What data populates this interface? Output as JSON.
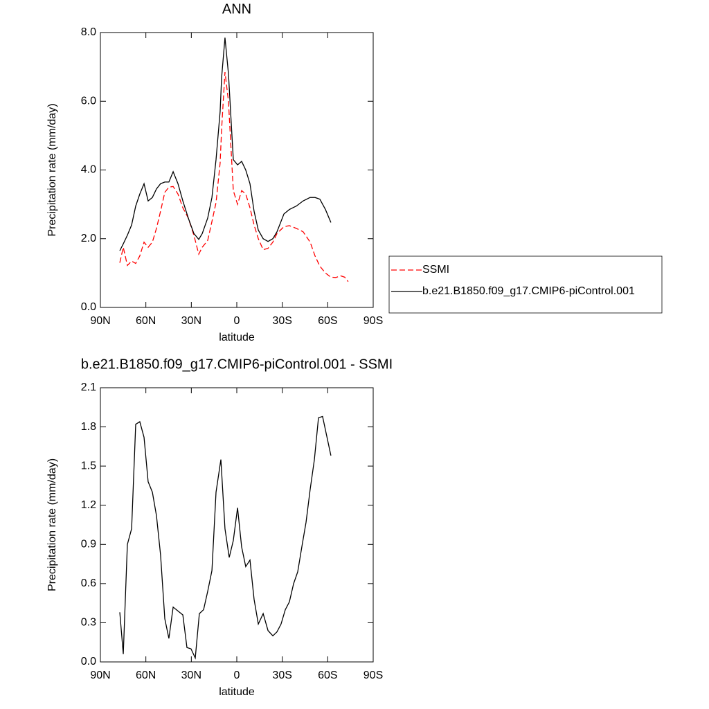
{
  "chart_data": [
    {
      "type": "line",
      "title": "ANN",
      "x_label": "latitude",
      "y_label": "Precipitation rate (mm/day)",
      "x": [
        77.2,
        74.9,
        72.2,
        69.4,
        66.7,
        64.0,
        61.2,
        58.5,
        55.7,
        53.0,
        50.3,
        47.5,
        44.8,
        42.0,
        38.8,
        35.6,
        32.0,
        28.3,
        25.1,
        22.8,
        19.2,
        16.4,
        13.7,
        11.0,
        10.0,
        7.8,
        5.5,
        2.3,
        -0.5,
        -3.2,
        -5.9,
        -8.7,
        -11.4,
        -14.2,
        -17.4,
        -20.6,
        -23.8,
        -26.5,
        -31.1,
        -34.7,
        -39.3,
        -43.8,
        -48.4,
        -51.6,
        -54.8,
        -58.5,
        -62.1,
        -65.3,
        -68.5,
        -71.2,
        -73.5
      ],
      "series": [
        {
          "name": "SSMI",
          "color": "#ff0000",
          "dash": true,
          "values": [
            1.3,
            1.75,
            1.22,
            1.35,
            1.28,
            1.5,
            1.9,
            1.75,
            1.9,
            2.3,
            2.8,
            3.35,
            3.5,
            3.52,
            3.3,
            2.9,
            2.6,
            2.1,
            1.55,
            1.75,
            1.95,
            2.5,
            3.05,
            4.2,
            5.2,
            6.85,
            6.0,
            3.4,
            3.0,
            3.4,
            3.3,
            2.9,
            2.4,
            2.0,
            1.68,
            1.72,
            1.9,
            2.15,
            2.35,
            2.38,
            2.3,
            2.2,
            1.9,
            1.5,
            1.2,
            1.0,
            0.88,
            0.87,
            0.92,
            0.88,
            0.75
          ]
        },
        {
          "name": "b.e21.B1850.f09_g17.CMIP6-piControl.001",
          "color": "#000000",
          "dash": false,
          "values": [
            1.65,
            1.85,
            2.1,
            2.4,
            2.95,
            3.3,
            3.6,
            3.1,
            3.2,
            3.45,
            3.6,
            3.65,
            3.65,
            3.95,
            3.6,
            3.1,
            2.6,
            2.15,
            1.98,
            2.15,
            2.6,
            3.2,
            4.3,
            5.7,
            6.7,
            7.85,
            6.8,
            4.3,
            4.15,
            4.25,
            4.0,
            3.6,
            2.8,
            2.25,
            2.0,
            1.92,
            2.0,
            2.2,
            2.72,
            2.85,
            2.95,
            3.1,
            3.2,
            3.2,
            3.15,
            2.85,
            2.47,
            null,
            null,
            null,
            null
          ]
        }
      ],
      "xlim": [
        90,
        -90
      ],
      "xticks": [
        {
          "value": 90,
          "label": "90N"
        },
        {
          "value": 60,
          "label": "60N"
        },
        {
          "value": 30,
          "label": "30N"
        },
        0,
        {
          "value": -30,
          "label": "30S"
        },
        {
          "value": -60,
          "label": "60S"
        },
        {
          "value": -90,
          "label": "90S"
        }
      ],
      "ylim": [
        0,
        8
      ],
      "yticks": [
        {
          "value": 0,
          "label": "0.0"
        },
        {
          "value": 2,
          "label": "2.0"
        },
        {
          "value": 4,
          "label": "4.0"
        },
        {
          "value": 6,
          "label": "6.0"
        },
        {
          "value": 8,
          "label": "8.0"
        }
      ],
      "legend": "right"
    },
    {
      "type": "line",
      "title": "b.e21.B1850.f09_g17.CMIP6-piControl.001 - SSMI",
      "x_label": "latitude",
      "y_label": "Precipitation rate (mm/day)",
      "x": [
        77.2,
        74.9,
        72.2,
        69.4,
        66.7,
        64.0,
        61.2,
        58.5,
        55.7,
        53.0,
        50.3,
        47.5,
        44.8,
        42.0,
        38.8,
        35.6,
        32.9,
        30.2,
        27.4,
        24.7,
        21.9,
        19.2,
        16.4,
        13.7,
        10.5,
        7.8,
        5.0,
        2.3,
        -0.5,
        -3.2,
        -5.9,
        -8.7,
        -11.4,
        -14.2,
        -17.4,
        -20.6,
        -23.8,
        -26.5,
        -29.2,
        -32.0,
        -34.7,
        -37.5,
        -40.2,
        -42.9,
        -45.7,
        -48.4,
        -51.2,
        -53.9,
        -56.6,
        -62.1
      ],
      "values": [
        0.38,
        0.06,
        0.9,
        1.02,
        1.82,
        1.84,
        1.72,
        1.38,
        1.3,
        1.12,
        0.82,
        0.33,
        0.18,
        0.42,
        0.39,
        0.36,
        0.11,
        0.1,
        0.03,
        0.37,
        0.4,
        0.54,
        0.7,
        1.3,
        1.55,
        1.02,
        0.8,
        0.93,
        1.18,
        0.88,
        0.73,
        0.78,
        0.48,
        0.29,
        0.37,
        0.24,
        0.2,
        0.23,
        0.29,
        0.4,
        0.46,
        0.6,
        0.69,
        0.88,
        1.07,
        1.32,
        1.55,
        1.87,
        1.88,
        1.58
      ],
      "color": "#000000",
      "xlim": [
        90,
        -90
      ],
      "xticks": [
        {
          "value": 90,
          "label": "90N"
        },
        {
          "value": 60,
          "label": "60N"
        },
        {
          "value": 30,
          "label": "30N"
        },
        0,
        {
          "value": -30,
          "label": "30S"
        },
        {
          "value": -60,
          "label": "60S"
        },
        {
          "value": -90,
          "label": "90S"
        }
      ],
      "ylim": [
        0,
        2.1
      ],
      "yticks": [
        {
          "value": 0,
          "label": "0.0"
        },
        0.3,
        0.6,
        0.9,
        1.2,
        1.5,
        1.8,
        2.1
      ]
    }
  ]
}
